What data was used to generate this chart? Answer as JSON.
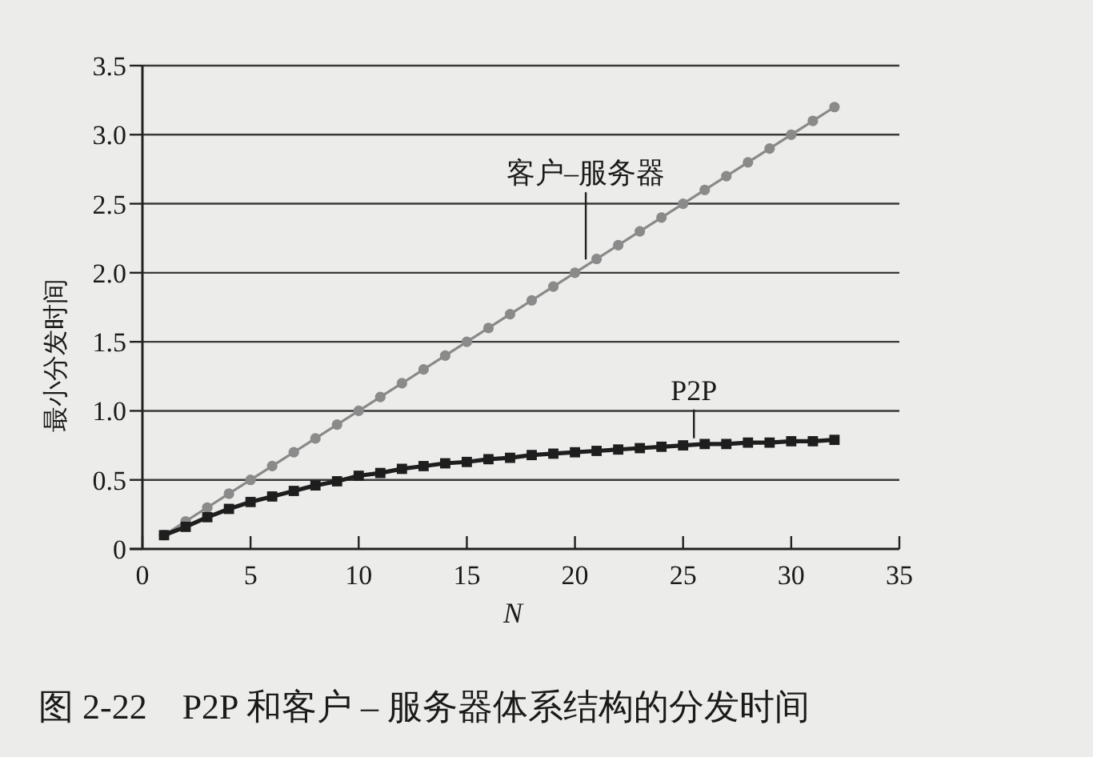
{
  "chart_data": {
    "type": "line",
    "title": "图 2-22　P2P 和客户 – 服务器体系结构的分发时间",
    "xlabel": "N",
    "ylabel": "最小分发时间",
    "x": [
      1,
      2,
      3,
      4,
      5,
      6,
      7,
      8,
      9,
      10,
      11,
      12,
      13,
      14,
      15,
      16,
      17,
      18,
      19,
      20,
      21,
      22,
      23,
      24,
      25,
      26,
      27,
      28,
      29,
      30,
      31,
      32
    ],
    "series": [
      {
        "name": "客户–服务器",
        "color": "#8a8a8a",
        "marker": "circle",
        "values": [
          0.1,
          0.2,
          0.3,
          0.4,
          0.5,
          0.6,
          0.7,
          0.8,
          0.9,
          1.0,
          1.1,
          1.2,
          1.3,
          1.4,
          1.5,
          1.6,
          1.7,
          1.8,
          1.9,
          2.0,
          2.1,
          2.2,
          2.3,
          2.4,
          2.5,
          2.6,
          2.7,
          2.8,
          2.9,
          3.0,
          3.1,
          3.2
        ]
      },
      {
        "name": "P2P",
        "color": "#1e1e1e",
        "marker": "square",
        "values": [
          0.1,
          0.16,
          0.23,
          0.29,
          0.34,
          0.38,
          0.42,
          0.46,
          0.49,
          0.53,
          0.55,
          0.58,
          0.6,
          0.62,
          0.63,
          0.65,
          0.66,
          0.68,
          0.69,
          0.7,
          0.71,
          0.72,
          0.73,
          0.74,
          0.75,
          0.76,
          0.76,
          0.77,
          0.77,
          0.78,
          0.78,
          0.79
        ]
      }
    ],
    "xlim": [
      0,
      35
    ],
    "xticks": [
      0,
      5,
      10,
      15,
      20,
      25,
      30,
      35
    ],
    "ylim": [
      0,
      3.5
    ],
    "yticks": [
      0,
      0.5,
      {
        "value": 1,
        "label": "1.0"
      },
      1.5,
      {
        "value": 2,
        "label": "2.0"
      },
      2.5,
      {
        "value": 3,
        "label": "3.0"
      },
      3.5
    ],
    "grid": "y",
    "legend": false
  }
}
